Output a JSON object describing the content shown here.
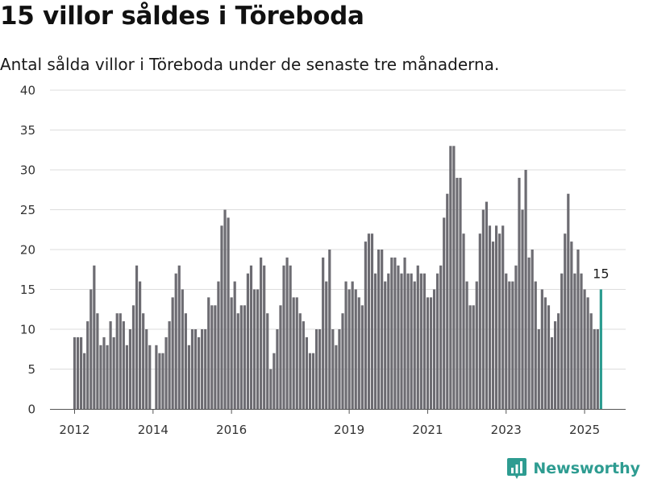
{
  "title": "15 villor såldes i Töreboda",
  "subtitle": "Antal sålda villor i Töreboda under de senaste tre månaderna.",
  "brand": {
    "name": "Newsworthy",
    "color": "#2e9c91",
    "icon": "bar-chart-badge-icon"
  },
  "colors": {
    "bar": "#6d6c72",
    "highlight": "#2a9b8f",
    "grid": "#dddddd",
    "axis": "#555555"
  },
  "chart_data": {
    "type": "bar",
    "x_start": "2012-01",
    "interval": "month",
    "x_ticks": [
      "2012",
      "2014",
      "2016",
      "2019",
      "2021",
      "2023",
      "2025"
    ],
    "y_ticks": [
      0,
      5,
      10,
      15,
      20,
      25,
      30,
      35,
      40
    ],
    "ylim": [
      0,
      40
    ],
    "grid": true,
    "values": [
      9,
      9,
      9,
      7,
      11,
      15,
      18,
      12,
      8,
      9,
      8,
      11,
      9,
      12,
      12,
      11,
      8,
      10,
      13,
      18,
      16,
      12,
      10,
      8,
      0,
      8,
      7,
      7,
      9,
      11,
      14,
      17,
      18,
      15,
      12,
      8,
      10,
      10,
      9,
      10,
      10,
      14,
      13,
      13,
      16,
      23,
      25,
      24,
      14,
      16,
      12,
      13,
      13,
      17,
      18,
      15,
      15,
      19,
      18,
      12,
      5,
      7,
      10,
      13,
      18,
      19,
      18,
      14,
      14,
      12,
      11,
      9,
      7,
      7,
      10,
      10,
      19,
      16,
      20,
      10,
      8,
      10,
      12,
      16,
      15,
      16,
      15,
      14,
      13,
      21,
      22,
      22,
      17,
      20,
      20,
      16,
      17,
      19,
      19,
      18,
      17,
      19,
      17,
      17,
      16,
      18,
      17,
      17,
      14,
      14,
      15,
      17,
      18,
      24,
      27,
      33,
      33,
      29,
      29,
      22,
      16,
      13,
      13,
      16,
      22,
      25,
      26,
      23,
      21,
      23,
      22,
      23,
      17,
      16,
      16,
      18,
      29,
      25,
      30,
      19,
      20,
      16,
      10,
      15,
      14,
      13,
      9,
      11,
      12,
      17,
      22,
      27,
      21,
      17,
      20,
      17,
      15,
      14,
      12,
      10,
      10,
      15
    ],
    "highlight": {
      "index": 161,
      "value": 15,
      "label": "15"
    }
  }
}
